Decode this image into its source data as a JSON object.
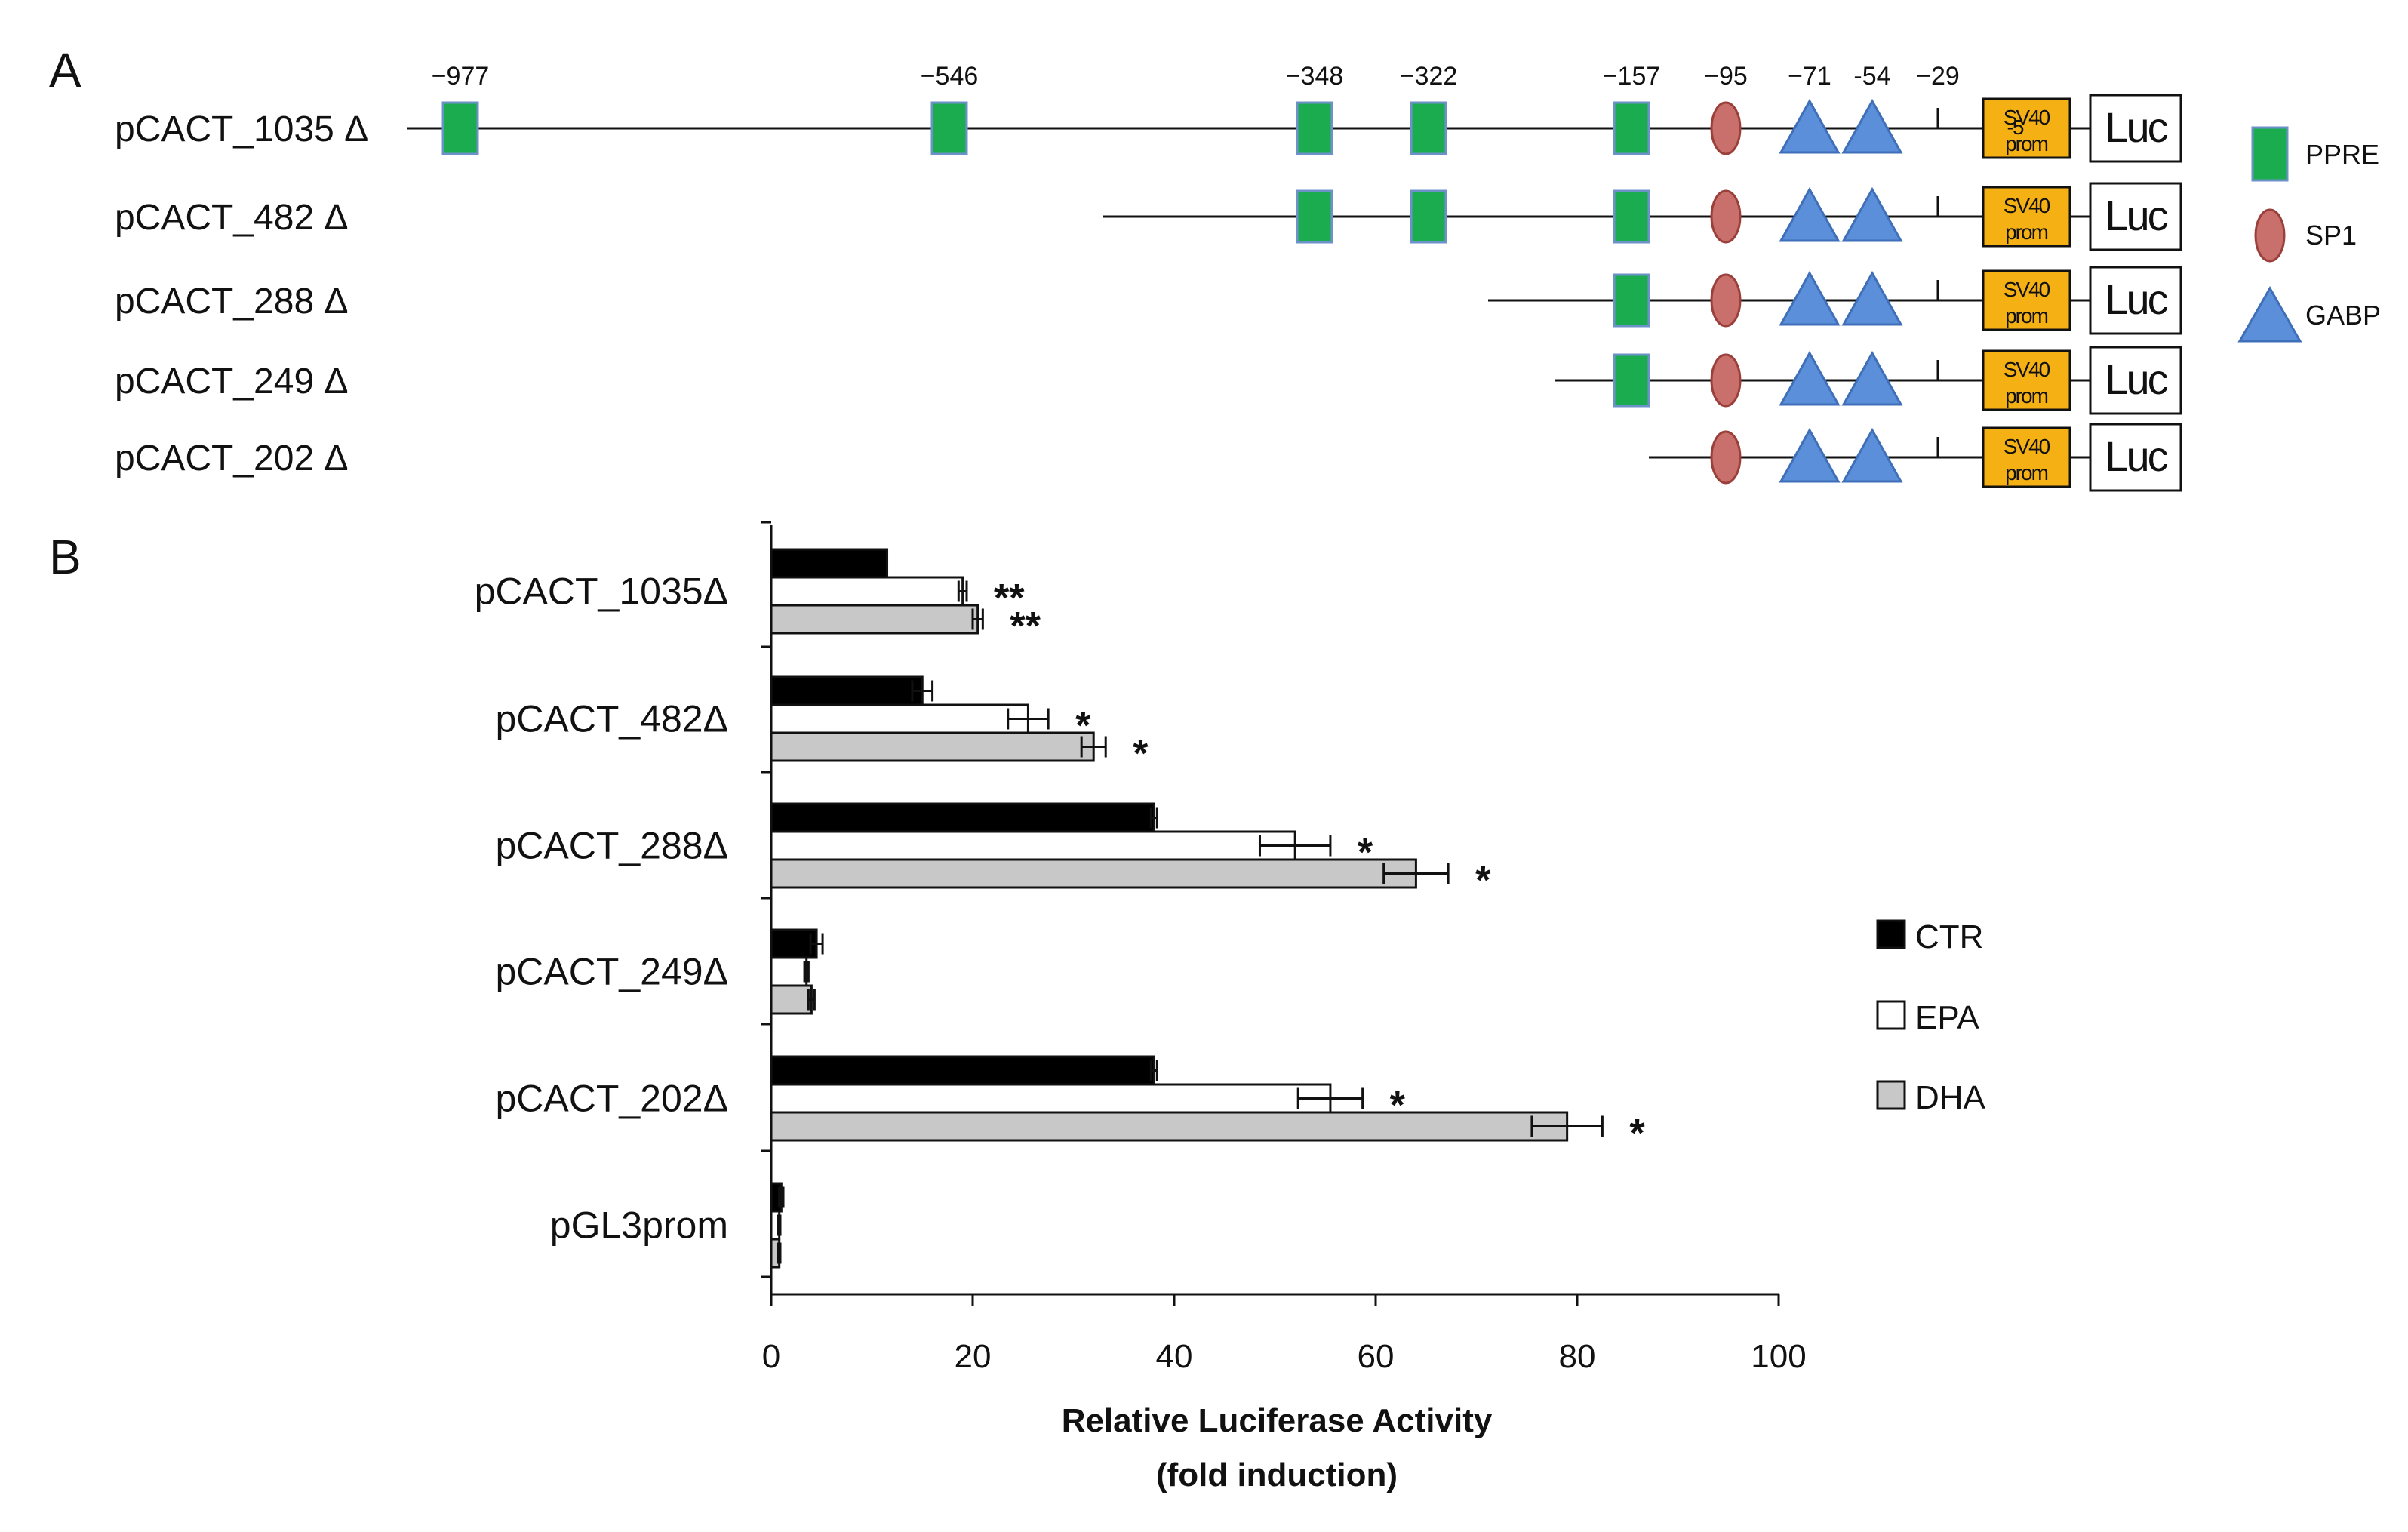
{
  "panel_a": {
    "letter": "A",
    "positions": [
      {
        "label": "−977",
        "bp": -977
      },
      {
        "label": "−546",
        "bp": -546
      },
      {
        "label": "−348",
        "bp": -348
      },
      {
        "label": "−322",
        "bp": -322
      },
      {
        "label": "−157",
        "bp": -157
      },
      {
        "label": "−95",
        "bp": -95
      },
      {
        "label": "−71",
        "bp": -71
      },
      {
        "label": "-54",
        "bp": -54
      },
      {
        "label": "−29",
        "bp": -29
      }
    ],
    "extra_label": "-5",
    "promoter_label_top": "SV40",
    "promoter_label_bottom": "prom",
    "reporter_label": "Luc",
    "constructs": [
      {
        "label": "pCACT_1035 Δ",
        "elements": [
          "PPRE@-977",
          "PPRE@-546",
          "PPRE@-348",
          "PPRE@-322",
          "PPRE@-157",
          "SP1@-95",
          "GABP@-71",
          "GABP@-54"
        ]
      },
      {
        "label": "pCACT_482 Δ",
        "elements": [
          "PPRE@-348",
          "PPRE@-322",
          "PPRE@-157",
          "SP1@-95",
          "GABP@-71",
          "GABP@-54"
        ]
      },
      {
        "label": "pCACT_288 Δ",
        "elements": [
          "PPRE@-157",
          "SP1@-95",
          "GABP@-71",
          "GABP@-54"
        ]
      },
      {
        "label": "pCACT_249 Δ",
        "elements": [
          "PPRE@-157",
          "SP1@-95",
          "GABP@-71",
          "GABP@-54"
        ]
      },
      {
        "label": "pCACT_202 Δ",
        "elements": [
          "SP1@-95",
          "GABP@-71",
          "GABP@-54"
        ]
      }
    ],
    "legend": [
      {
        "label": "PPRE",
        "shape": "square",
        "color": "#1aac4e"
      },
      {
        "label": "SP1",
        "shape": "ellipse",
        "color": "#c9706c"
      },
      {
        "label": "GABP",
        "shape": "triangle",
        "color": "#5b8fd9"
      }
    ]
  },
  "panel_b": {
    "letter": "B"
  },
  "chart_data": {
    "type": "bar",
    "orientation": "horizontal",
    "categories": [
      "pCACT_1035Δ",
      "pCACT_482Δ",
      "pCACT_288Δ",
      "pCACT_249Δ",
      "pCACT_202Δ",
      "pGL3prom"
    ],
    "series": [
      {
        "name": "CTR",
        "color": "#000000",
        "values": [
          11.5,
          15,
          38,
          4.5,
          38,
          1
        ],
        "errors": [
          0,
          1,
          0.3,
          0.6,
          0.3,
          0.2
        ],
        "stars": [
          "",
          "",
          "",
          "",
          "",
          ""
        ]
      },
      {
        "name": "EPA",
        "color": "#ffffff",
        "values": [
          19,
          25.5,
          52,
          3.5,
          55.5,
          0.8
        ],
        "errors": [
          0.4,
          2,
          3.5,
          0.2,
          3.2,
          0.1
        ],
        "stars": [
          "**",
          "*",
          "*",
          "",
          "*",
          ""
        ]
      },
      {
        "name": "DHA",
        "color": "#c8c8c8",
        "values": [
          20.5,
          32,
          64,
          4,
          79,
          0.8
        ],
        "errors": [
          0.5,
          1.2,
          3.2,
          0.3,
          3.5,
          0.1
        ],
        "stars": [
          "**",
          "*",
          "*",
          "",
          "*",
          ""
        ]
      }
    ],
    "xlim": [
      0,
      100
    ],
    "xticks": [
      0,
      20,
      40,
      60,
      80,
      100
    ],
    "xlabel_line1": "Relative Luciferase Activity",
    "xlabel_line2": "(fold induction)",
    "legend_position": "right"
  }
}
